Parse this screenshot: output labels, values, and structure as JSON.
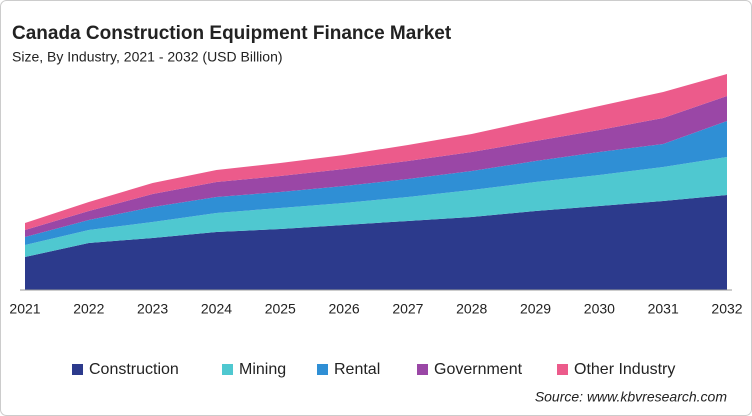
{
  "chart_data": {
    "type": "stacked-area",
    "title": "Canada Construction Equipment Finance Market",
    "subtitle": "Size, By Industry, 2021 - 2032 (USD Billion)",
    "source": "Source: www.kbvresearch.com",
    "x": [
      2021,
      2022,
      2023,
      2024,
      2025,
      2026,
      2027,
      2028,
      2029,
      2030,
      2031,
      2032
    ],
    "xlim": [
      2021,
      2032
    ],
    "ylim": [
      0,
      2.4
    ],
    "legend": "bottom",
    "series": [
      {
        "name": "Construction",
        "color": "#2c3a8c",
        "values": [
          0.33,
          0.47,
          0.52,
          0.58,
          0.61,
          0.65,
          0.69,
          0.73,
          0.79,
          0.84,
          0.89,
          0.95
        ]
      },
      {
        "name": "Mining",
        "color": "#4fc8d0",
        "values": [
          0.12,
          0.13,
          0.16,
          0.19,
          0.21,
          0.22,
          0.24,
          0.27,
          0.29,
          0.31,
          0.34,
          0.38
        ]
      },
      {
        "name": "Rental",
        "color": "#2f8fd5",
        "values": [
          0.08,
          0.1,
          0.15,
          0.16,
          0.16,
          0.17,
          0.18,
          0.19,
          0.21,
          0.23,
          0.23,
          0.36
        ]
      },
      {
        "name": "Government",
        "color": "#9a47a6",
        "values": [
          0.07,
          0.09,
          0.13,
          0.15,
          0.16,
          0.17,
          0.18,
          0.19,
          0.2,
          0.22,
          0.26,
          0.25
        ]
      },
      {
        "name": "Other Industry",
        "color": "#ec5b8b",
        "values": [
          0.07,
          0.09,
          0.11,
          0.12,
          0.13,
          0.14,
          0.16,
          0.18,
          0.21,
          0.24,
          0.26,
          0.22
        ]
      }
    ]
  }
}
